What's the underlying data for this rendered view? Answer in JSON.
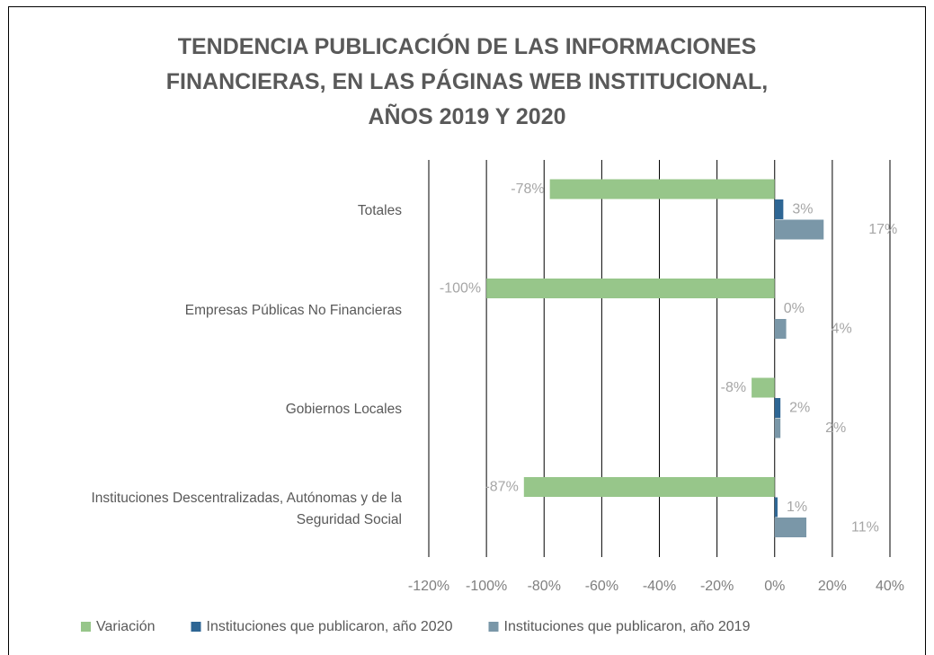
{
  "chart_data": {
    "type": "hbar",
    "title": "TENDENCIA PUBLICACIÓN DE LAS INFORMACIONES\nFINANCIERAS, EN LAS PÁGINAS WEB INSTITUCIONAL,\nAÑOS 2019 Y 2020",
    "categories": [
      "Totales",
      "Empresas Públicas No Financieras",
      "Gobiernos Locales",
      "Instituciones Descentralizadas, Autónomas y de la\nSeguridad Social"
    ],
    "series": [
      {
        "name": "Variación",
        "color": "#97c68a",
        "values": [
          -78,
          -100,
          -8,
          -87
        ],
        "value_labels": [
          "-78%",
          "-100%",
          "-8%",
          "-87%"
        ]
      },
      {
        "name": "Instituciones que publicaron, año 2020",
        "color": "#2e6694",
        "values": [
          3,
          0,
          2,
          1
        ],
        "value_labels": [
          "3%",
          "0%",
          "2%",
          "1%"
        ]
      },
      {
        "name": "Instituciones que publicaron, año 2019",
        "color": "#7a97a8",
        "values": [
          17,
          4,
          2,
          11
        ],
        "value_labels": [
          "17%",
          "4%",
          "2%",
          "11%"
        ]
      }
    ],
    "xlim": [
      -120,
      40
    ],
    "xticks": [
      {
        "value": -120,
        "label": "-120%"
      },
      {
        "value": -100,
        "label": "-100%"
      },
      {
        "value": -80,
        "label": "-80%"
      },
      {
        "value": -60,
        "label": "-60%"
      },
      {
        "value": -40,
        "label": "-40%"
      },
      {
        "value": -20,
        "label": "-20%"
      },
      {
        "value": 0,
        "label": "0%"
      },
      {
        "value": 20,
        "label": "20%"
      },
      {
        "value": 40,
        "label": "40%"
      }
    ],
    "grid": true,
    "legend": "bottom"
  }
}
